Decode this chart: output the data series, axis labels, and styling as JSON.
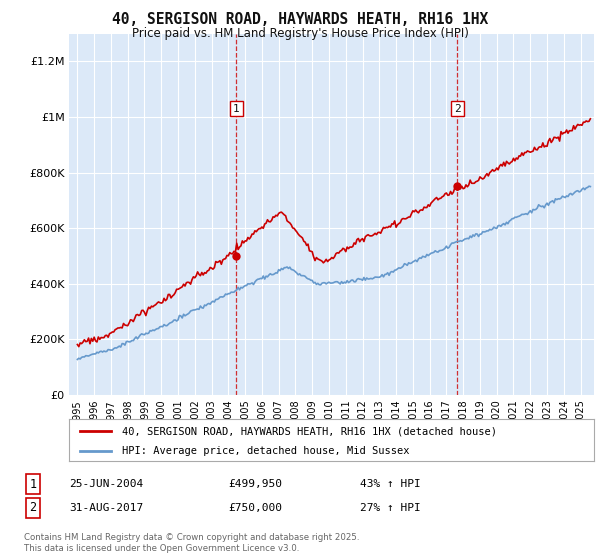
{
  "title": "40, SERGISON ROAD, HAYWARDS HEATH, RH16 1HX",
  "subtitle": "Price paid vs. HM Land Registry's House Price Index (HPI)",
  "ylabel_ticks": [
    "£0",
    "£200K",
    "£400K",
    "£600K",
    "£800K",
    "£1M",
    "£1.2M"
  ],
  "ytick_values": [
    0,
    200000,
    400000,
    600000,
    800000,
    1000000,
    1200000
  ],
  "ylim": [
    0,
    1300000
  ],
  "xlim_start": 1994.5,
  "xlim_end": 2025.8,
  "xtick_years": [
    1995,
    1996,
    1997,
    1998,
    1999,
    2000,
    2001,
    2002,
    2003,
    2004,
    2005,
    2006,
    2007,
    2008,
    2009,
    2010,
    2011,
    2012,
    2013,
    2014,
    2015,
    2016,
    2017,
    2018,
    2019,
    2020,
    2021,
    2022,
    2023,
    2024,
    2025
  ],
  "sale1_year": 2004.48,
  "sale1_price": 499950,
  "sale2_year": 2017.66,
  "sale2_price": 750000,
  "property_color": "#cc0000",
  "hpi_color": "#6699cc",
  "plot_bg_color": "#dce9f8",
  "fig_bg_color": "#ffffff",
  "grid_color": "#ffffff",
  "legend_label_property": "40, SERGISON ROAD, HAYWARDS HEATH, RH16 1HX (detached house)",
  "legend_label_hpi": "HPI: Average price, detached house, Mid Sussex",
  "annotation1_date": "25-JUN-2004",
  "annotation1_price": "£499,950",
  "annotation1_hpi": "43% ↑ HPI",
  "annotation2_date": "31-AUG-2017",
  "annotation2_price": "£750,000",
  "annotation2_hpi": "27% ↑ HPI",
  "footer": "Contains HM Land Registry data © Crown copyright and database right 2025.\nThis data is licensed under the Open Government Licence v3.0."
}
